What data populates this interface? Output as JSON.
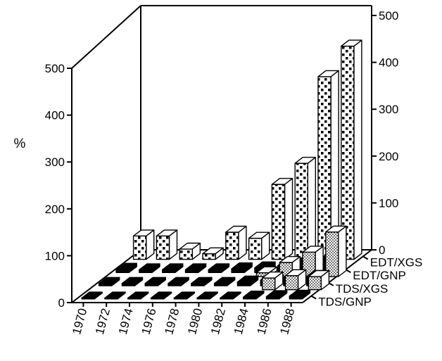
{
  "chart_data": {
    "type": "bar",
    "subtype": "3d-bar",
    "title": "",
    "ylabel": "%",
    "ylim": [
      0,
      500
    ],
    "yticks_left": [
      "0",
      "100",
      "200",
      "300",
      "400",
      "500"
    ],
    "yticks_right": [
      "0",
      "100",
      "200",
      "300",
      "400",
      "500"
    ],
    "categories": [
      "1970",
      "1972",
      "1974",
      "1976",
      "1978",
      "1980",
      "1982",
      "1984",
      "1986",
      "1988"
    ],
    "series": [
      {
        "name": "TDS/GNP",
        "pattern": "solid-black",
        "values": [
          2,
          2,
          2,
          2,
          2,
          2,
          2,
          4,
          5,
          6
        ]
      },
      {
        "name": "TDS/XGS",
        "pattern": "solid-black",
        "values": [
          5,
          5,
          5,
          5,
          5,
          5,
          8,
          12,
          18,
          20
        ]
      },
      {
        "name": "EDT/GNP",
        "pattern": "solid-black",
        "values": [
          7,
          6,
          6,
          6,
          6,
          8,
          10,
          15,
          30,
          35
        ]
      },
      {
        "name": "EDT/XGS",
        "pattern": "checkered",
        "values": [
          50,
          50,
          22,
          12,
          58,
          45,
          160,
          205,
          390,
          455
        ]
      }
    ],
    "overlay_bars": [
      {
        "row": "EDT/GNP",
        "pattern": "stippled",
        "values": [
          null,
          null,
          null,
          null,
          null,
          null,
          8,
          30,
          52,
          95
        ]
      },
      {
        "row": "TDS/XGS",
        "pattern": "stippled",
        "values": [
          null,
          null,
          null,
          null,
          null,
          null,
          null,
          25,
          30,
          28
        ]
      }
    ],
    "grid": false,
    "legend": "row labels at lower-right depth axis"
  }
}
